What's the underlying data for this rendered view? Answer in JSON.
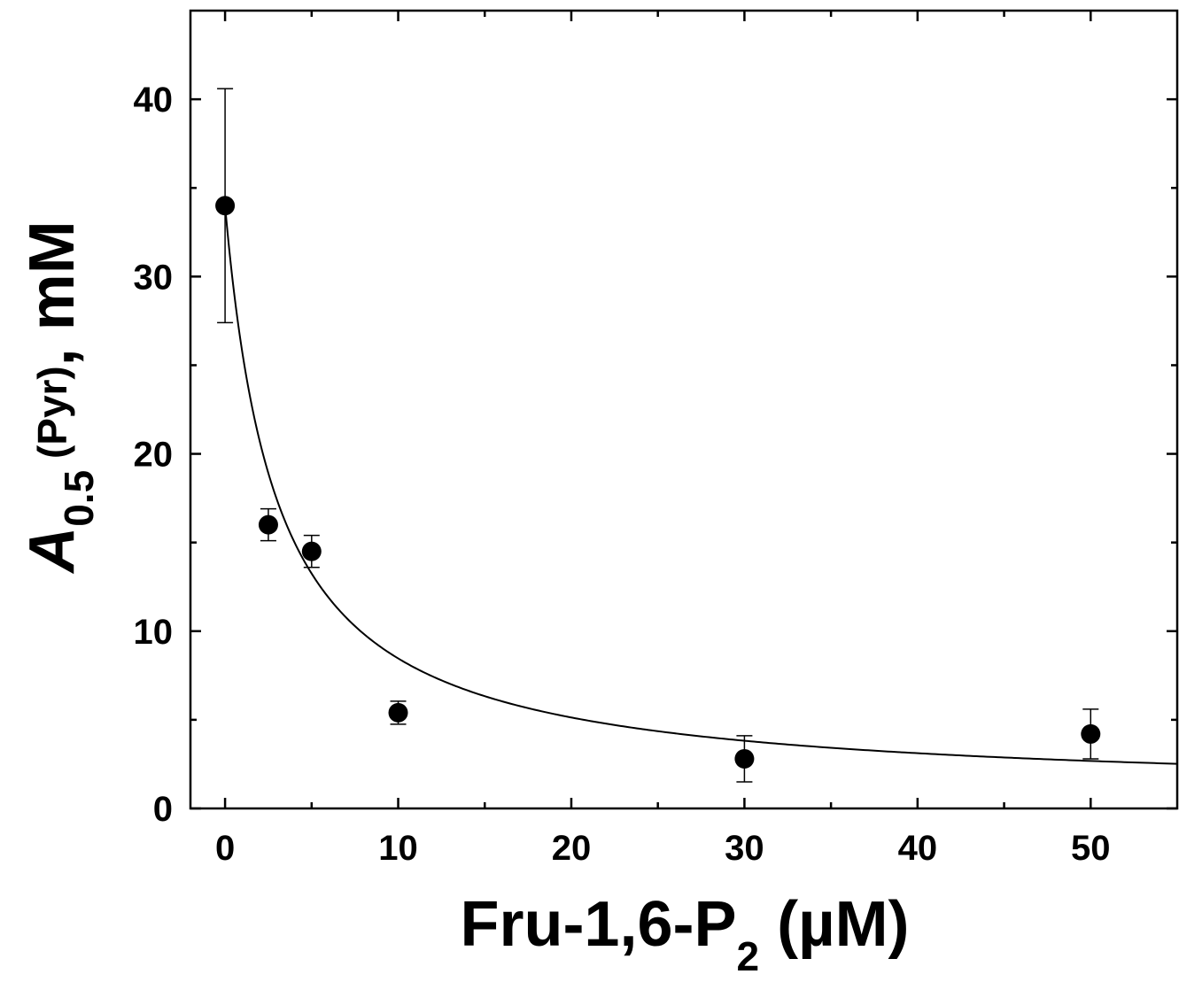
{
  "chart_data": {
    "type": "scatter",
    "x": [
      0,
      2.5,
      5,
      10,
      30,
      50
    ],
    "y": [
      34.0,
      16.0,
      14.5,
      5.4,
      2.8,
      4.2
    ],
    "y_err": [
      6.6,
      0.9,
      0.9,
      0.65,
      1.3,
      1.4
    ],
    "fit_curve": {
      "type": "hyperbolic_decrease",
      "y0": 34.0,
      "y_inf": 0.8,
      "k_half": 3.0
    },
    "xlim": [
      -2,
      55
    ],
    "ylim": [
      0,
      45
    ],
    "x_major_ticks": [
      0,
      10,
      20,
      30,
      40,
      50
    ],
    "x_tick_labels": [
      "0",
      "10",
      "20",
      "30",
      "40",
      "50"
    ],
    "x_minor_ticks": [
      5,
      15,
      25,
      35,
      45
    ],
    "y_major_ticks": [
      0,
      10,
      20,
      30,
      40
    ],
    "y_tick_labels": [
      "0",
      "10",
      "20",
      "30",
      "40"
    ],
    "y_minor_ticks": [
      5,
      15,
      25,
      35
    ],
    "xlabel": {
      "main": "Fru-1,6-P",
      "subscript": "2",
      "suffix": " (µM)"
    },
    "ylabel": {
      "main": "A",
      "subscript": "0.5",
      "suffix_small": " (Pyr)",
      "suffix": ", mM"
    },
    "grid": false,
    "legend": "none",
    "marker_color": "#000000"
  }
}
